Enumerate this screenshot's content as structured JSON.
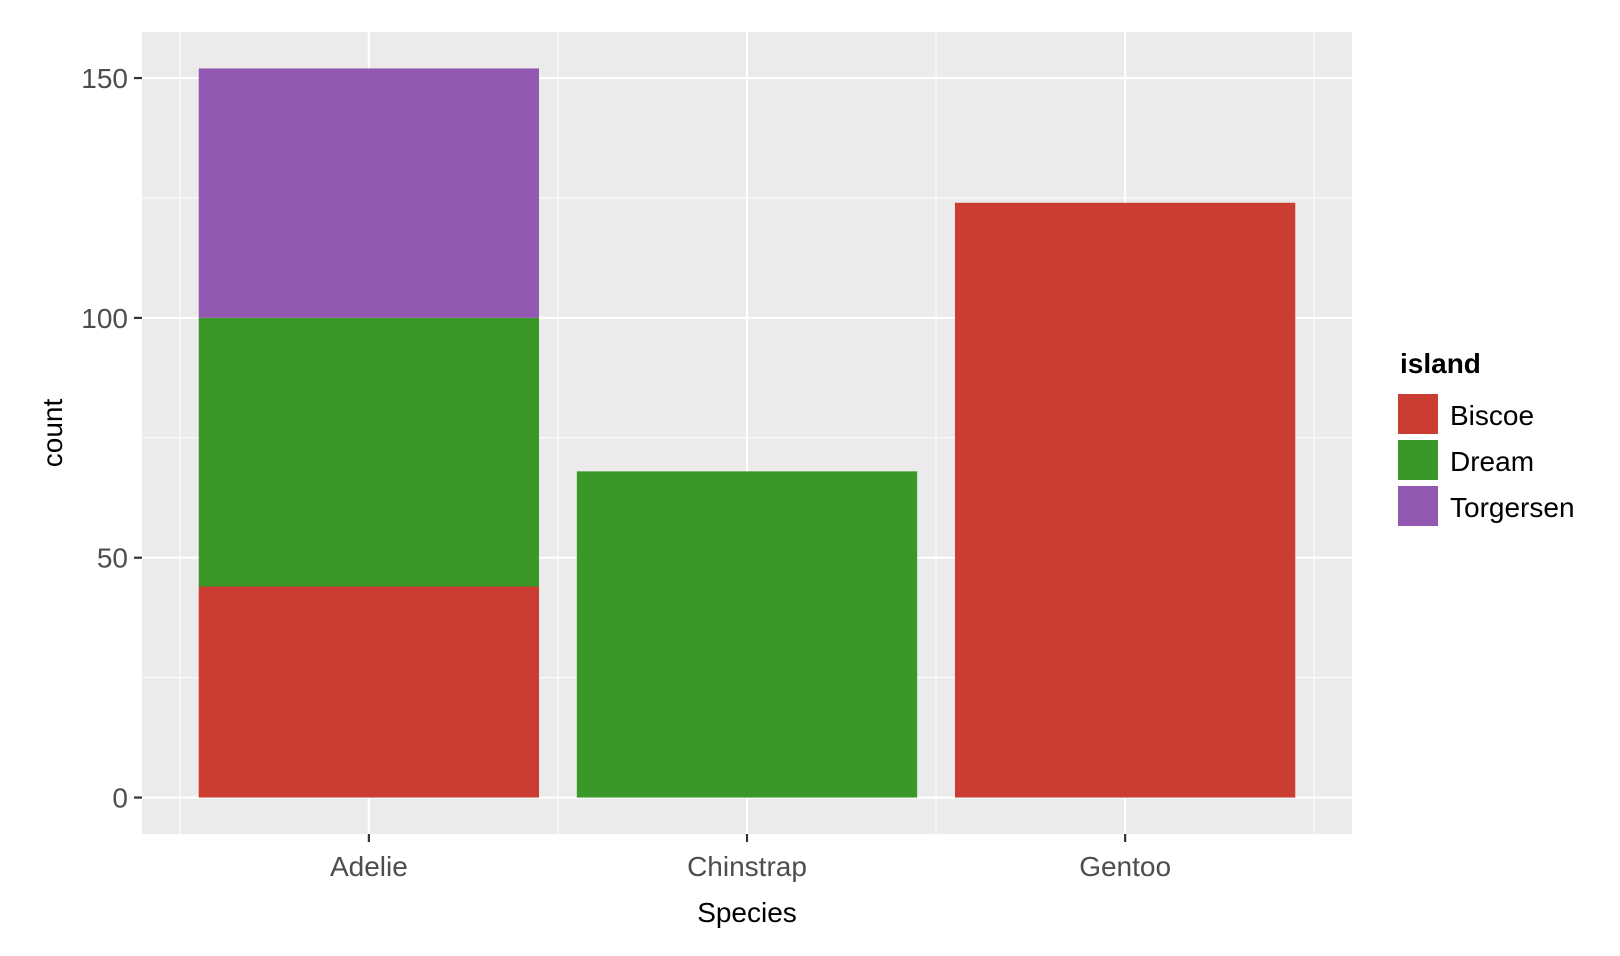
{
  "chart_data": {
    "type": "bar",
    "stacked": true,
    "categories": [
      "Adelie",
      "Chinstrap",
      "Gentoo"
    ],
    "series": [
      {
        "name": "Biscoe",
        "color": "#cb3d33",
        "values": [
          44,
          0,
          124
        ]
      },
      {
        "name": "Dream",
        "color": "#3a9828",
        "values": [
          56,
          68,
          0
        ]
      },
      {
        "name": "Torgersen",
        "color": "#9358b1",
        "values": [
          52,
          0,
          0
        ]
      }
    ],
    "title": "",
    "xlabel": "Species",
    "ylabel": "count",
    "ylim": [
      -7.6,
      159.6
    ],
    "yticks": [
      0,
      50,
      100,
      150
    ],
    "ytick_labels": [
      "0",
      "50",
      "100",
      "150"
    ],
    "legend": {
      "title": "island",
      "position": "right"
    },
    "grid": true,
    "panel_background": "#ebebeb",
    "grid_color": "#ffffff"
  }
}
